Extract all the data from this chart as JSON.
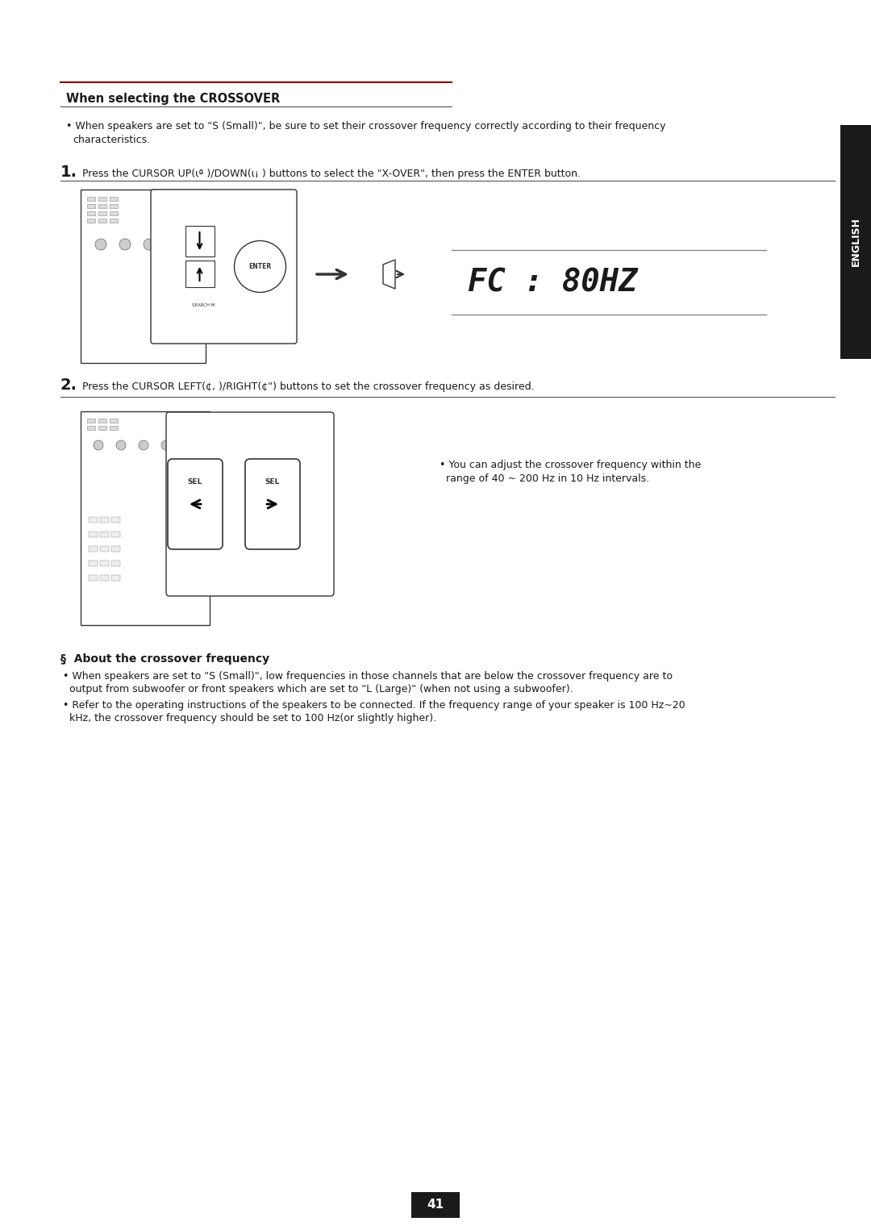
{
  "bg_color": "#ffffff",
  "page_number": "41",
  "section_title": "When selecting the CROSSOVER",
  "bullet1": "When speakers are set to \"S (Small)\", be sure to set their crossover frequency correctly according to their frequency\ncharacteristics.",
  "step1_number": "1.",
  "step1_text": " Press the CURSOR UP(ιª )/DOWN(ι¡ ) buttons to select the \"X-OVER\", then press the ENTER button.",
  "step2_number": "2.",
  "step2_text": " Press the CURSOR LEFT(¢, )/RIGHT(¢\") buttons to set the crossover frequency as desired.",
  "display_text": "FC : 80HZ",
  "note_step2": "• You can adjust the crossover frequency within the\n  range of 40 ~ 200 Hz in 10 Hz intervals.",
  "about_title": "§  About the crossover frequency",
  "about_bullet1": "• When speakers are set to \"S (Small)\", low frequencies in those channels that are below the crossover frequency are to\n  output from subwoofer or front speakers which are set to \"L (Large)\" (when not using a subwoofer).",
  "about_bullet2": "• Refer to the operating instructions of the speakers to be connected. If the frequency range of your speaker is 100 Hz~20\n  kHz, the crossover frequency should be set to 100 Hz(or slightly higher).",
  "english_tab_text": "ENGLISH",
  "english_tab_bg": "#1a1a1a",
  "english_tab_fg": "#ffffff",
  "header_line_color": "#8b0000",
  "divider_color": "#555555",
  "text_color": "#1a1a1a",
  "display_border_color": "#888888"
}
